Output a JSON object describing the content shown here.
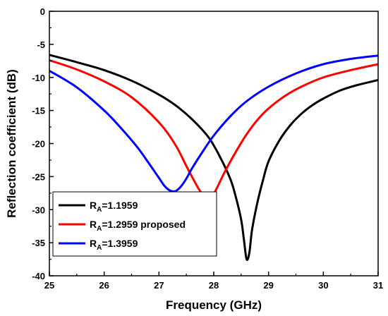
{
  "chart_data": {
    "type": "line",
    "title": "",
    "xlabel": "Frequency (GHz)",
    "ylabel": "Reflection coefficient (dB)",
    "xlim": [
      25,
      31
    ],
    "ylim": [
      -40,
      0
    ],
    "xticks": [
      25,
      26,
      27,
      28,
      29,
      30,
      31
    ],
    "yticks": [
      0,
      -5,
      -10,
      -15,
      -20,
      -25,
      -30,
      -35,
      -40
    ],
    "grid": false,
    "legend": "bottom-left",
    "series": [
      {
        "name": "R_A=1.1959",
        "label_main": "R",
        "label_sub": "A",
        "label_rest": "=1.1959",
        "color": "#000000",
        "x": [
          25.0,
          25.5,
          26.0,
          26.5,
          27.0,
          27.3,
          27.6,
          27.9,
          28.1,
          28.3,
          28.4,
          28.5,
          28.55,
          28.6,
          28.65,
          28.7,
          28.8,
          28.9,
          29.0,
          29.2,
          29.4,
          29.6,
          29.8,
          30.0,
          30.3,
          30.6,
          31.0
        ],
        "y": [
          -6.6,
          -7.7,
          -8.9,
          -10.5,
          -12.6,
          -14.2,
          -16.3,
          -19.0,
          -21.8,
          -25.3,
          -28.0,
          -31.5,
          -34.5,
          -37.5,
          -36.5,
          -33.0,
          -28.8,
          -25.5,
          -22.7,
          -19.5,
          -17.2,
          -15.5,
          -14.2,
          -13.2,
          -12.0,
          -11.2,
          -10.4
        ]
      },
      {
        "name": "R_A=1.2959 proposed",
        "label_main": "R",
        "label_sub": "A",
        "label_rest": "=1.2959 proposed",
        "color": "#ff0000",
        "x": [
          25.0,
          25.5,
          26.0,
          26.5,
          27.0,
          27.3,
          27.5,
          27.7,
          27.8,
          27.9,
          28.0,
          28.1,
          28.2,
          28.4,
          28.6,
          28.8,
          29.0,
          29.3,
          29.6,
          30.0,
          30.5,
          31.0
        ],
        "y": [
          -7.4,
          -8.8,
          -10.6,
          -13.0,
          -16.8,
          -20.2,
          -23.4,
          -26.5,
          -27.7,
          -28.2,
          -27.6,
          -26.0,
          -24.3,
          -21.3,
          -18.6,
          -16.4,
          -14.7,
          -12.8,
          -11.4,
          -10.0,
          -8.9,
          -8.0
        ]
      },
      {
        "name": "R_A=1.3959",
        "label_main": "R",
        "label_sub": "A",
        "label_rest": "=1.3959",
        "color": "#0000ff",
        "x": [
          25.0,
          25.5,
          26.0,
          26.3,
          26.6,
          26.8,
          27.0,
          27.1,
          27.2,
          27.3,
          27.4,
          27.5,
          27.6,
          27.8,
          28.0,
          28.3,
          28.6,
          29.0,
          29.5,
          30.0,
          30.5,
          31.0
        ],
        "y": [
          -9.0,
          -11.5,
          -15.0,
          -17.6,
          -20.5,
          -22.8,
          -25.2,
          -26.4,
          -27.1,
          -27.2,
          -26.5,
          -25.3,
          -23.8,
          -21.2,
          -18.8,
          -15.9,
          -13.6,
          -11.4,
          -9.4,
          -8.0,
          -7.2,
          -6.7
        ]
      }
    ]
  }
}
